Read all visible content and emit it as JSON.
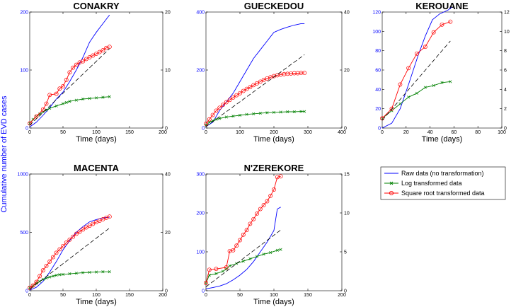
{
  "figure": {
    "ylabel": "Cumulative number of EVD cases",
    "colors": {
      "raw": "#0000ff",
      "log": "#008000",
      "sqrt": "#ff0000",
      "fit": "#000000"
    }
  },
  "legend": {
    "items": [
      {
        "key": "raw",
        "label": "Raw data (no transformation)"
      },
      {
        "key": "log",
        "label": "Log transformed data"
      },
      {
        "key": "sqrt",
        "label": "Square root transformed data"
      }
    ]
  },
  "chart_data": [
    {
      "type": "line",
      "title": "CONAKRY",
      "xlabel": "Time (days)",
      "xlim": [
        0,
        200
      ],
      "xticks": [
        0,
        50,
        100,
        150,
        200
      ],
      "ylim_left": [
        0,
        200
      ],
      "yticks_left": [
        0,
        100,
        200
      ],
      "ylim_right": [
        0,
        20
      ],
      "yticks_right": [
        0,
        10,
        20
      ],
      "series": [
        {
          "name": "Raw data (no transformation)",
          "axis": "left",
          "x": [
            0,
            10,
            20,
            30,
            40,
            50,
            60,
            70,
            80,
            90,
            100,
            110,
            120
          ],
          "y": [
            2,
            10,
            22,
            35,
            50,
            62,
            80,
            100,
            122,
            148,
            165,
            180,
            195
          ]
        },
        {
          "name": "Log transformed data",
          "axis": "right",
          "x": [
            0,
            5,
            10,
            15,
            20,
            25,
            30,
            40,
            50,
            55,
            60,
            70,
            80,
            90,
            100,
            110,
            120
          ],
          "y": [
            0.8,
            1.5,
            2.0,
            2.4,
            2.8,
            3.1,
            3.4,
            3.8,
            4.2,
            4.4,
            4.6,
            4.8,
            5.0,
            5.1,
            5.2,
            5.3,
            5.4
          ]
        },
        {
          "name": "Square root transformed data",
          "axis": "right",
          "x": [
            0,
            10,
            20,
            25,
            30,
            40,
            45,
            50,
            55,
            60,
            65,
            70,
            75,
            80,
            85,
            90,
            95,
            100,
            105,
            110,
            115,
            120
          ],
          "y": [
            0.8,
            2.0,
            3.2,
            4.2,
            5.7,
            5.9,
            6.8,
            7.2,
            8.3,
            9.6,
            10.4,
            10.9,
            11.3,
            11.5,
            11.9,
            12.2,
            12.5,
            12.8,
            13.1,
            13.4,
            13.8,
            14.0
          ]
        },
        {
          "name": "Linear fit",
          "axis": "right",
          "x": [
            0,
            120
          ],
          "y": [
            0.5,
            13.7
          ]
        }
      ]
    },
    {
      "type": "line",
      "title": "GUECKEDOU",
      "xlabel": "Time (days)",
      "xlim": [
        0,
        400
      ],
      "xticks": [
        0,
        100,
        200,
        300,
        400
      ],
      "ylim_left": [
        0,
        400
      ],
      "yticks_left": [
        0,
        200,
        400
      ],
      "ylim_right": [
        0,
        40
      ],
      "yticks_right": [
        0,
        20,
        40
      ],
      "series": [
        {
          "name": "Raw data (no transformation)",
          "axis": "left",
          "x": [
            0,
            20,
            40,
            60,
            80,
            100,
            120,
            140,
            160,
            180,
            200,
            220,
            240,
            260,
            280,
            290
          ],
          "y": [
            5,
            20,
            60,
            90,
            120,
            160,
            200,
            240,
            270,
            300,
            330,
            340,
            348,
            355,
            360,
            360
          ]
        },
        {
          "name": "Log transformed data",
          "axis": "right",
          "x": [
            0,
            10,
            20,
            30,
            40,
            60,
            80,
            100,
            120,
            140,
            160,
            180,
            200,
            220,
            240,
            260,
            280,
            290
          ],
          "y": [
            1.0,
            2.0,
            2.5,
            3.0,
            3.3,
            3.8,
            4.1,
            4.4,
            4.7,
            4.9,
            5.1,
            5.3,
            5.4,
            5.5,
            5.6,
            5.6,
            5.7,
            5.7
          ]
        },
        {
          "name": "Square root transformed data",
          "axis": "right",
          "x": [
            0,
            10,
            20,
            30,
            40,
            50,
            60,
            70,
            80,
            90,
            100,
            110,
            120,
            130,
            140,
            150,
            160,
            170,
            180,
            190,
            200,
            210,
            220,
            230,
            240,
            250,
            260,
            270,
            280,
            290
          ],
          "y": [
            1.5,
            3.0,
            4.5,
            6.0,
            7.0,
            8.0,
            8.9,
            9.7,
            10.5,
            11.3,
            12.0,
            12.8,
            13.5,
            14.1,
            14.8,
            15.4,
            16.0,
            16.6,
            17.1,
            17.5,
            17.9,
            18.2,
            18.4,
            18.6,
            18.7,
            18.8,
            18.9,
            18.9,
            19.0,
            19.0
          ]
        },
        {
          "name": "Linear fit",
          "axis": "right",
          "x": [
            0,
            290
          ],
          "y": [
            0.5,
            25.3
          ]
        }
      ]
    },
    {
      "type": "line",
      "title": "KEROUANE",
      "xlabel": "Time (days)",
      "xlim": [
        0,
        100
      ],
      "xticks": [
        0,
        20,
        40,
        60,
        80,
        100
      ],
      "ylim_left": [
        0,
        120
      ],
      "yticks_left": [
        0,
        20,
        40,
        60,
        80,
        100,
        120
      ],
      "ylim_right": [
        0,
        12
      ],
      "yticks_right": [
        0,
        2,
        4,
        6,
        8,
        10,
        12
      ],
      "series": [
        {
          "name": "Raw data (no transformation)",
          "axis": "left",
          "x": [
            0,
            8,
            15,
            22,
            30,
            36,
            42,
            48,
            55,
            58
          ],
          "y": [
            0,
            5,
            20,
            45,
            75,
            95,
            112,
            118,
            122,
            125
          ]
        },
        {
          "name": "Log transformed data",
          "axis": "right",
          "x": [
            0,
            8,
            15,
            22,
            29,
            36,
            43,
            50,
            57
          ],
          "y": [
            1.0,
            1.8,
            2.5,
            3.2,
            3.6,
            4.2,
            4.4,
            4.7,
            4.8
          ]
        },
        {
          "name": "Square root transformed data",
          "axis": "right",
          "x": [
            0,
            8,
            15,
            22,
            29,
            36,
            43,
            50,
            57
          ],
          "y": [
            1.0,
            2.0,
            4.5,
            6.2,
            7.7,
            8.4,
            9.9,
            10.7,
            11.0
          ]
        },
        {
          "name": "Linear fit",
          "axis": "right",
          "x": [
            0,
            57
          ],
          "y": [
            0.8,
            9.0
          ]
        }
      ]
    },
    {
      "type": "line",
      "title": "MACENTA",
      "xlabel": "Time (days)",
      "xlim": [
        0,
        200
      ],
      "xticks": [
        0,
        50,
        100,
        150,
        200
      ],
      "ylim_left": [
        0,
        1000
      ],
      "yticks_left": [
        0,
        500,
        1000
      ],
      "ylim_right": [
        0,
        40
      ],
      "yticks_right": [
        0,
        20,
        40
      ],
      "series": [
        {
          "name": "Raw data (no transformation)",
          "axis": "left",
          "x": [
            0,
            10,
            20,
            30,
            40,
            50,
            60,
            70,
            80,
            90,
            100,
            110,
            120
          ],
          "y": [
            5,
            30,
            80,
            160,
            250,
            350,
            430,
            500,
            550,
            590,
            610,
            625,
            630
          ]
        },
        {
          "name": "Log transformed data",
          "axis": "right",
          "x": [
            0,
            5,
            10,
            15,
            20,
            25,
            30,
            35,
            40,
            45,
            50,
            60,
            70,
            80,
            90,
            100,
            110,
            120
          ],
          "y": [
            1.0,
            1.7,
            2.6,
            3.2,
            3.9,
            4.3,
            4.7,
            5.0,
            5.3,
            5.5,
            5.6,
            5.8,
            6.0,
            6.2,
            6.3,
            6.4,
            6.5,
            6.5
          ]
        },
        {
          "name": "Square root transformed data",
          "axis": "right",
          "x": [
            0,
            5,
            10,
            15,
            20,
            25,
            30,
            35,
            40,
            45,
            50,
            55,
            60,
            65,
            70,
            75,
            80,
            85,
            90,
            95,
            100,
            105,
            110,
            115,
            120
          ],
          "y": [
            1.0,
            1.8,
            3.0,
            5.0,
            7.0,
            8.5,
            10.0,
            11.5,
            13.0,
            14.2,
            15.3,
            16.5,
            17.5,
            18.5,
            19.5,
            20.2,
            21.0,
            21.7,
            22.3,
            22.9,
            23.5,
            24.0,
            24.5,
            25.0,
            25.4
          ]
        },
        {
          "name": "Linear fit",
          "axis": "right",
          "x": [
            0,
            120
          ],
          "y": [
            0.5,
            21.5
          ]
        }
      ]
    },
    {
      "type": "line",
      "title": "N'ZEREKORE",
      "xlabel": "Time (days)",
      "xlim": [
        0,
        200
      ],
      "xticks": [
        0,
        50,
        100,
        150,
        200
      ],
      "ylim_left": [
        0,
        300
      ],
      "yticks_left": [
        0,
        100,
        200,
        300
      ],
      "ylim_right": [
        0,
        15
      ],
      "yticks_right": [
        0,
        5,
        10,
        15
      ],
      "series": [
        {
          "name": "Raw data (no transformation)",
          "axis": "left",
          "x": [
            0,
            10,
            20,
            30,
            40,
            50,
            60,
            70,
            80,
            90,
            100,
            105,
            110
          ],
          "y": [
            5,
            8,
            12,
            18,
            28,
            40,
            55,
            75,
            100,
            125,
            155,
            210,
            215
          ]
        },
        {
          "name": "Log transformed data",
          "axis": "right",
          "x": [
            0,
            5,
            15,
            25,
            30,
            35,
            45,
            55,
            65,
            75,
            85,
            95,
            105,
            110
          ],
          "y": [
            1.0,
            2.0,
            2.2,
            2.5,
            2.8,
            3.2,
            3.5,
            3.8,
            4.1,
            4.4,
            4.7,
            4.9,
            5.2,
            5.3
          ]
        },
        {
          "name": "Square root transformed data",
          "axis": "right",
          "x": [
            0,
            5,
            15,
            30,
            35,
            40,
            45,
            50,
            55,
            60,
            65,
            70,
            75,
            80,
            85,
            90,
            95,
            100,
            105,
            110
          ],
          "y": [
            1.0,
            2.7,
            2.8,
            3.0,
            5.1,
            5.2,
            5.8,
            6.5,
            7.2,
            7.8,
            8.6,
            9.2,
            9.9,
            10.5,
            11.0,
            11.5,
            12.2,
            13.0,
            14.6,
            14.7
          ]
        },
        {
          "name": "Linear fit",
          "axis": "right",
          "x": [
            0,
            110
          ],
          "y": [
            0.5,
            7.8
          ]
        }
      ]
    }
  ]
}
